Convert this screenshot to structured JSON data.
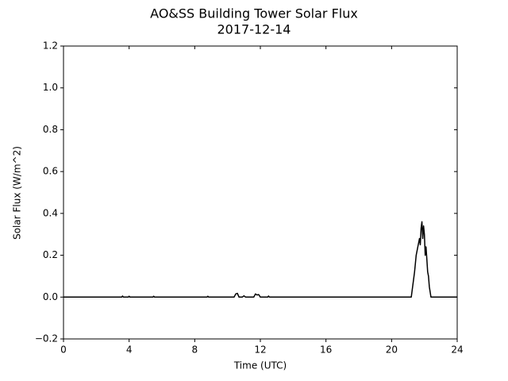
{
  "chart_data": {
    "type": "line",
    "title": "AO&SS Building Tower Solar Flux",
    "subtitle": "2017-12-14",
    "x_label": "Time (UTC)",
    "y_label": "Solar Flux (W/m^2)",
    "xlim": [
      0,
      24
    ],
    "xticks": [
      0,
      4,
      8,
      12,
      16,
      20,
      24
    ],
    "ylim": [
      -0.2,
      1.2
    ],
    "yticks": [
      {
        "value": -0.2,
        "label": "−0.2"
      },
      {
        "value": 0,
        "label": "0.0"
      },
      0.2,
      0.4,
      0.6,
      0.8,
      {
        "value": 1,
        "label": "1.0"
      },
      1.2
    ],
    "grid": false,
    "x": [
      0,
      3.55,
      3.6,
      3.65,
      3.95,
      4.0,
      4.05,
      5.45,
      5.5,
      5.55,
      8.75,
      8.8,
      8.85,
      10.4,
      10.5,
      10.6,
      10.7,
      10.9,
      11.0,
      11.1,
      11.6,
      11.7,
      11.8,
      11.9,
      12.0,
      12.45,
      12.5,
      12.55,
      21.2,
      21.3,
      21.4,
      21.5,
      21.6,
      21.7,
      21.75,
      21.8,
      21.85,
      21.9,
      21.95,
      22.0,
      22.05,
      22.1,
      22.15,
      22.2,
      22.25,
      22.3,
      22.4,
      24
    ],
    "series": [
      {
        "color": "#000000",
        "values": [
          0,
          0,
          0.005,
          0,
          0,
          0.004,
          0,
          0,
          0.004,
          0,
          0,
          0.004,
          0,
          0,
          0.015,
          0.018,
          0,
          0,
          0.006,
          0,
          0,
          0.015,
          0.01,
          0.012,
          0,
          0,
          0.005,
          0,
          0,
          0.06,
          0.12,
          0.2,
          0.24,
          0.28,
          0.25,
          0.33,
          0.36,
          0.28,
          0.34,
          0.3,
          0.2,
          0.24,
          0.18,
          0.12,
          0.1,
          0.05,
          0,
          0
        ]
      }
    ]
  }
}
